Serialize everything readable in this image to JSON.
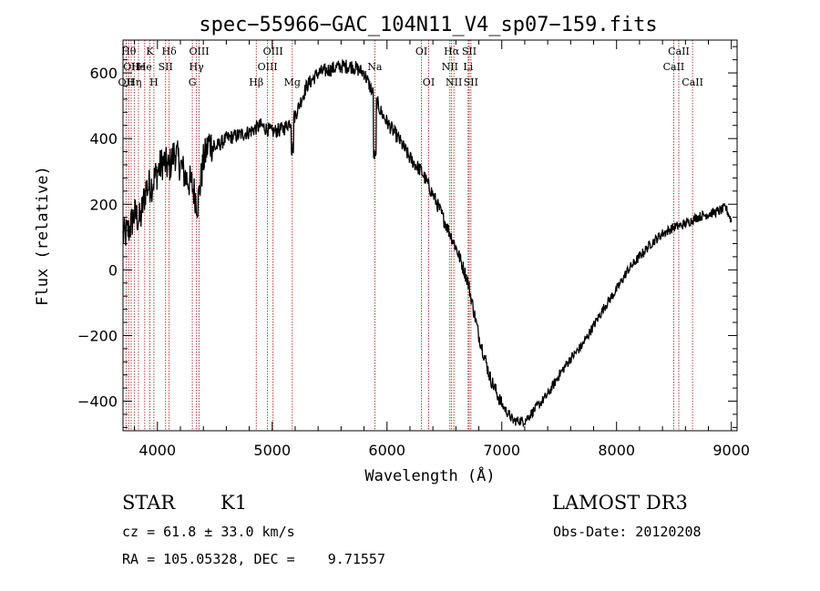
{
  "chart_data": {
    "type": "line",
    "title": "spec−55966−GAC_104N11_V4_sp07−159.fits",
    "xlabel": "Wavelength (Å)",
    "ylabel": "Flux (relative)",
    "xlim": [
      3700,
      9050
    ],
    "ylim": [
      -490,
      700
    ],
    "xticks": [
      4000,
      5000,
      6000,
      7000,
      8000,
      9000
    ],
    "yticks": [
      -400,
      -200,
      0,
      200,
      400,
      600
    ],
    "ytick_labels": [
      "−400",
      "−200",
      "0",
      "200",
      "400",
      "600"
    ],
    "series": [
      {
        "name": "flux",
        "x": [
          3700,
          3750,
          3800,
          3850,
          3900,
          3950,
          4000,
          4050,
          4100,
          4150,
          4200,
          4250,
          4300,
          4350,
          4400,
          4450,
          4500,
          4600,
          4700,
          4800,
          4900,
          5000,
          5100,
          5200,
          5300,
          5400,
          5500,
          5600,
          5700,
          5800,
          5850,
          5900,
          5950,
          6000,
          6100,
          6200,
          6300,
          6400,
          6500,
          6600,
          6700,
          6800,
          6900,
          7000,
          7100,
          7200,
          7300,
          7400,
          7500,
          7600,
          7700,
          7800,
          7900,
          8000,
          8100,
          8200,
          8300,
          8400,
          8500,
          8600,
          8700,
          8800,
          8900,
          8950,
          9000
        ],
        "y": [
          100,
          120,
          170,
          150,
          250,
          260,
          300,
          330,
          310,
          360,
          320,
          280,
          260,
          200,
          330,
          390,
          370,
          400,
          410,
          420,
          440,
          420,
          430,
          470,
          560,
          600,
          610,
          620,
          620,
          600,
          560,
          520,
          480,
          450,
          400,
          340,
          300,
          230,
          150,
          70,
          -30,
          -200,
          -330,
          -410,
          -460,
          -460,
          -420,
          -380,
          -320,
          -270,
          -230,
          -170,
          -110,
          -60,
          0,
          40,
          80,
          110,
          130,
          140,
          160,
          170,
          180,
          190,
          150
        ]
      }
    ],
    "line_markers": [
      {
        "wl": 3727,
        "label": "OII",
        "row": 2
      },
      {
        "wl": 3750,
        "label": "Hθ",
        "row": 0
      },
      {
        "wl": 3771,
        "label": "OII",
        "row": 1
      },
      {
        "wl": 3798,
        "label": "Hη",
        "row": 2
      },
      {
        "wl": 3835,
        "label": "He",
        "row": 1
      },
      {
        "wl": 3889,
        "label": "He",
        "row": 1
      },
      {
        "wl": 3934,
        "label": "K",
        "row": 0
      },
      {
        "wl": 3969,
        "label": "H",
        "row": 2
      },
      {
        "wl": 4071,
        "label": "SII",
        "row": 1
      },
      {
        "wl": 4102,
        "label": "Hδ",
        "row": 0
      },
      {
        "wl": 4304,
        "label": "G",
        "row": 2
      },
      {
        "wl": 4340,
        "label": "Hγ",
        "row": 1
      },
      {
        "wl": 4363,
        "label": "OIII",
        "row": 0
      },
      {
        "wl": 4861,
        "label": "Hβ",
        "row": 2
      },
      {
        "wl": 4959,
        "label": "OIII",
        "row": 1
      },
      {
        "wl": 5007,
        "label": "OIII",
        "row": 0
      },
      {
        "wl": 5175,
        "label": "Mg",
        "row": 2
      },
      {
        "wl": 5894,
        "label": "Na",
        "row": 1
      },
      {
        "wl": 6300,
        "label": "OI",
        "row": 0
      },
      {
        "wl": 6363,
        "label": "OI",
        "row": 2
      },
      {
        "wl": 6548,
        "label": "NII",
        "row": 1
      },
      {
        "wl": 6563,
        "label": "Hα",
        "row": 0
      },
      {
        "wl": 6583,
        "label": "NII",
        "row": 2
      },
      {
        "wl": 6707,
        "label": "Li",
        "row": 1
      },
      {
        "wl": 6716,
        "label": "SII",
        "row": 0
      },
      {
        "wl": 6731,
        "label": "SII",
        "row": 2
      },
      {
        "wl": 8498,
        "label": "CaII",
        "row": 1
      },
      {
        "wl": 8542,
        "label": "CaII",
        "row": 0
      },
      {
        "wl": 8662,
        "label": "CaII",
        "row": 2
      }
    ],
    "colors": {
      "spectrum": "#000000",
      "markers": "#b22222",
      "axes": "#000000"
    }
  },
  "info": {
    "object_class": "STAR",
    "subclass": "K1",
    "survey": "LAMOST DR3",
    "cz_line": "cz = 61.8 ± 33.0 km/s",
    "obs_date_line": "Obs-Date: 20120208",
    "radec_line": "RA = 105.05328, DEC =    9.71557"
  }
}
